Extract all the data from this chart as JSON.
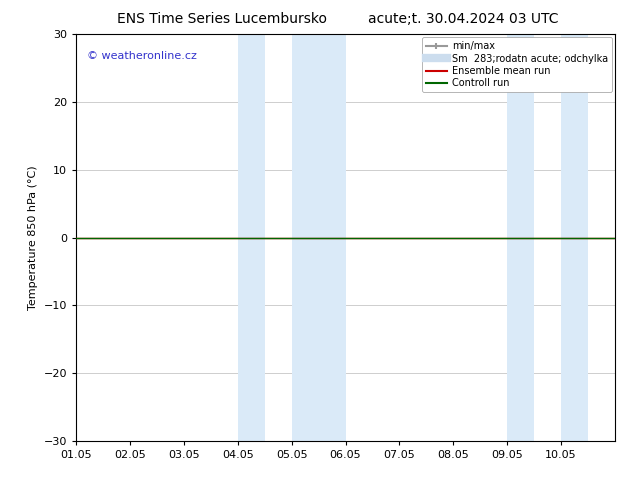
{
  "title_left": "ENS Time Series Lucembursko",
  "title_right": "acute;t. 30.04.2024 03 UTC",
  "ylabel": "Temperature 850 hPa (°C)",
  "ylim": [
    -30,
    30
  ],
  "yticks": [
    -30,
    -20,
    -10,
    0,
    10,
    20,
    30
  ],
  "xlim_start": 0,
  "xlim_end": 10,
  "xtick_labels": [
    "01.05",
    "02.05",
    "03.05",
    "04.05",
    "05.05",
    "06.05",
    "07.05",
    "08.05",
    "09.05",
    "10.05"
  ],
  "shaded_bands": [
    {
      "x_start": 3.0,
      "x_end": 3.5
    },
    {
      "x_start": 4.0,
      "x_end": 5.0
    },
    {
      "x_start": 8.5,
      "x_end": 9.0
    },
    {
      "x_start": 9.0,
      "x_end": 9.5
    }
  ],
  "shade_color": "#daeaf8",
  "flat_line_y": 0,
  "ensemble_mean_color": "#cc0000",
  "control_run_color": "#006600",
  "minmax_color": "#999999",
  "spread_color": "#ccddee",
  "copyright_text": "© weatheronline.cz",
  "copyright_color": "#3333cc",
  "background_color": "#ffffff",
  "grid_color": "#bbbbbb",
  "figsize": [
    6.34,
    4.9
  ],
  "dpi": 100,
  "title_fontsize": 10,
  "ylabel_fontsize": 8,
  "tick_fontsize": 8,
  "legend_fontsize": 7
}
